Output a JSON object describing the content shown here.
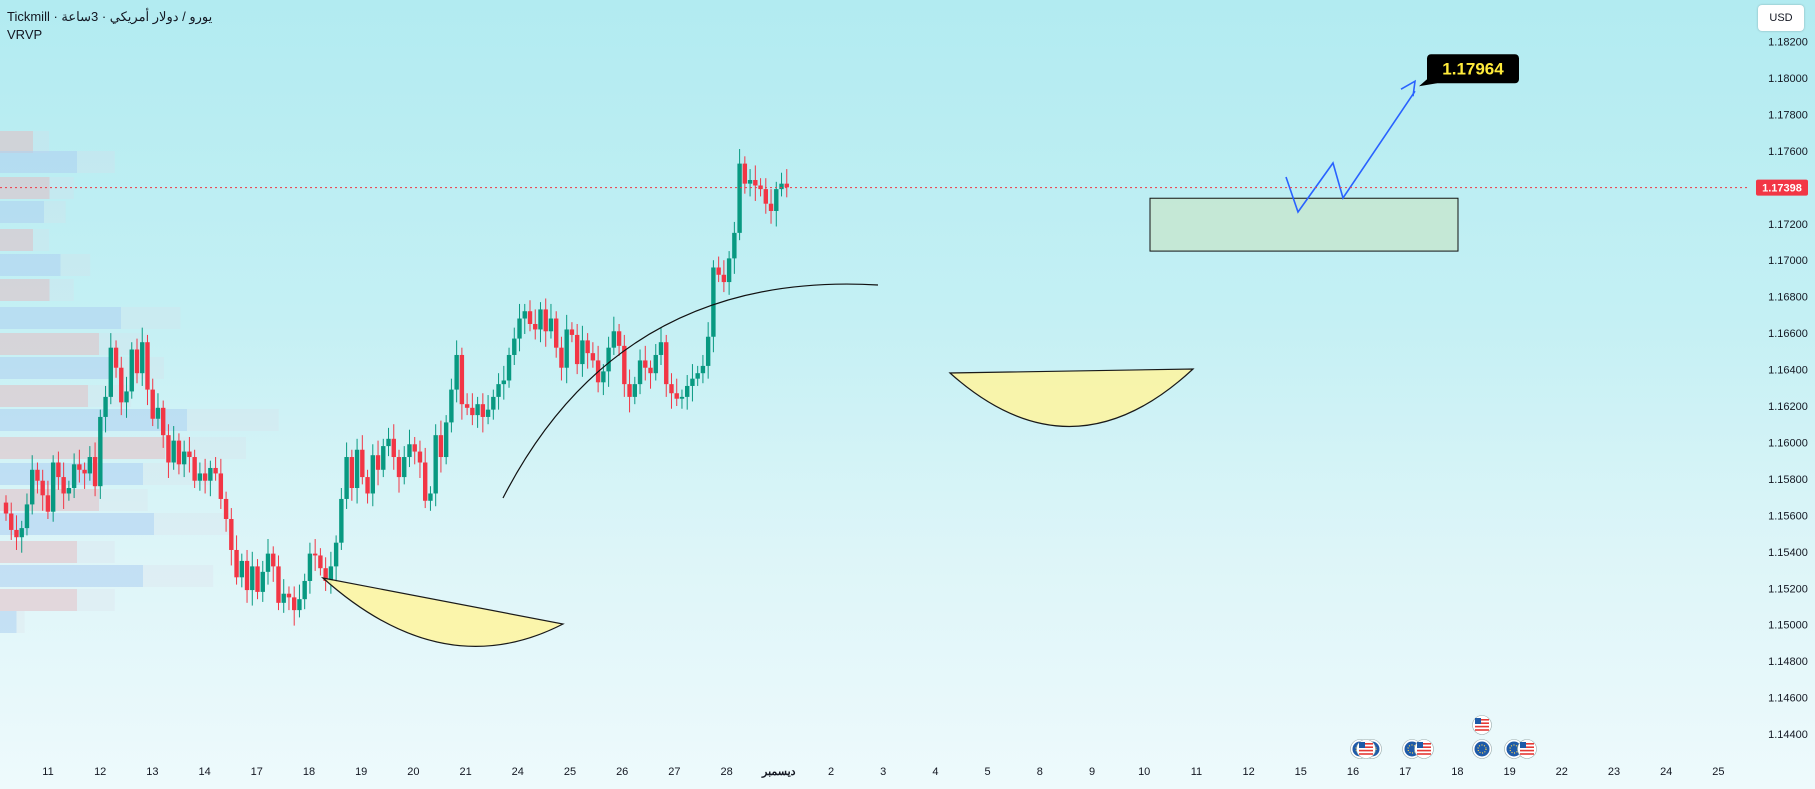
{
  "header": {
    "title": "Tickmill · يورو / دولار أمريكي · 3ساعة",
    "indicator": "VRVP"
  },
  "currency_button": "USD",
  "colors": {
    "up": "#089981",
    "down": "#f23645",
    "last_price": "#f23645",
    "target_label_bg": "#000000",
    "target_label_text": "#ffeb3b",
    "path_line": "#2962ff",
    "zone_fill": "#c8e6c9",
    "cup_fill": "#fff59d"
  },
  "chart_data": {
    "type": "candlestick",
    "y_axis": {
      "range": [
        1.143,
        1.1832
      ],
      "ticks": [
        "1.18200",
        "1.18000",
        "1.17800",
        "1.17600",
        "1.17400",
        "1.17200",
        "1.17000",
        "1.16800",
        "1.16600",
        "1.16400",
        "1.16200",
        "1.16000",
        "1.15800",
        "1.15600",
        "1.15400",
        "1.15200",
        "1.15000",
        "1.14800",
        "1.14600",
        "1.14400"
      ]
    },
    "x_axis": {
      "ticks": [
        "11",
        "12",
        "13",
        "14",
        "17",
        "18",
        "19",
        "20",
        "21",
        "24",
        "25",
        "26",
        "27",
        "28",
        "ديسمبر",
        "2",
        "3",
        "4",
        "5",
        "8",
        "9",
        "10",
        "11",
        "12",
        "15",
        "16",
        "17",
        "18",
        "19",
        "22",
        "23",
        "24",
        "25"
      ]
    },
    "last_price": "1.17398",
    "target_label": "1.17964",
    "target_price": 1.1796,
    "zone": {
      "from_price": 1.1705,
      "to_price": 1.1734
    },
    "close_path": [
      1.1561,
      1.1552,
      1.1548,
      1.1553,
      1.1566,
      1.1585,
      1.1579,
      1.1571,
      1.1562,
      1.1589,
      1.1581,
      1.1572,
      1.1575,
      1.1588,
      1.1585,
      1.1583,
      1.1592,
      1.1576,
      1.1614,
      1.1625,
      1.1652,
      1.1641,
      1.1622,
      1.1628,
      1.1651,
      1.1638,
      1.1655,
      1.1629,
      1.1613,
      1.1619,
      1.1604,
      1.1589,
      1.1601,
      1.1588,
      1.1595,
      1.1592,
      1.1579,
      1.1583,
      1.1579,
      1.1586,
      1.1583,
      1.1569,
      1.1558,
      1.1541,
      1.1526,
      1.1535,
      1.1519,
      1.1532,
      1.1518,
      1.1529,
      1.1539,
      1.1532,
      1.1512,
      1.1517,
      1.1515,
      1.1508,
      1.1514,
      1.1524,
      1.1539,
      1.1538,
      1.1531,
      1.1524,
      1.1532,
      1.1545,
      1.1569,
      1.1592,
      1.1575,
      1.1596,
      1.1581,
      1.1572,
      1.1593,
      1.1585,
      1.1598,
      1.1602,
      1.1592,
      1.1581,
      1.1592,
      1.1599,
      1.1595,
      1.1589,
      1.1568,
      1.1572,
      1.1604,
      1.1592,
      1.1611,
      1.1629,
      1.1648,
      1.1621,
      1.1619,
      1.1615,
      1.1621,
      1.1614,
      1.1618,
      1.1625,
      1.1632,
      1.1634,
      1.1648,
      1.1657,
      1.1668,
      1.1672,
      1.1665,
      1.1662,
      1.1673,
      1.1661,
      1.1668,
      1.1652,
      1.1641,
      1.1662,
      1.1659,
      1.1643,
      1.1656,
      1.1649,
      1.1645,
      1.1633,
      1.1639,
      1.1652,
      1.1661,
      1.1653,
      1.1632,
      1.1625,
      1.1632,
      1.1645,
      1.1641,
      1.1638,
      1.1648,
      1.1655,
      1.1632,
      1.1627,
      1.1624,
      1.1625,
      1.1631,
      1.1635,
      1.1638,
      1.1642,
      1.1658,
      1.1696,
      1.1692,
      1.1688,
      1.1701,
      1.1715,
      1.1753,
      1.1742,
      1.1744,
      1.1741,
      1.1739,
      1.1731,
      1.1727,
      1.1739,
      1.1742,
      1.174
    ]
  }
}
